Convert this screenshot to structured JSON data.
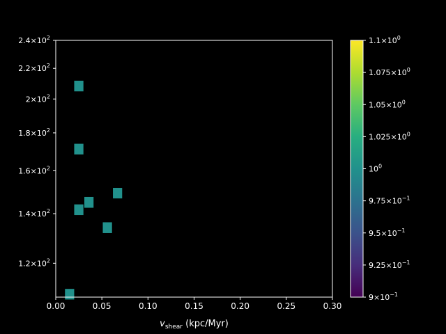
{
  "chart_data": {
    "type": "heatmap",
    "title": "",
    "xlabel": {
      "var": "v",
      "sub": "shear",
      "unit": " (kpc/Myr)"
    },
    "ylabel": "",
    "xlim": [
      0.0,
      0.3
    ],
    "ylim": [
      108,
      240
    ],
    "yscale": "log",
    "x_ticks": [
      0.0,
      0.05,
      0.1,
      0.15,
      0.2,
      0.25,
      0.3
    ],
    "x_tick_labels": [
      "0.00",
      "0.05",
      "0.10",
      "0.15",
      "0.20",
      "0.25",
      "0.30"
    ],
    "y_ticks": [
      {
        "value": 120,
        "mant": "1.2",
        "exp": "2"
      },
      {
        "value": 140,
        "mant": "1.4",
        "exp": "2"
      },
      {
        "value": 160,
        "mant": "1.6",
        "exp": "2"
      },
      {
        "value": 180,
        "mant": "1.8",
        "exp": "2"
      },
      {
        "value": 200,
        "mant": "2",
        "exp": "2"
      },
      {
        "value": 220,
        "mant": "2.2",
        "exp": "2"
      },
      {
        "value": 240,
        "mant": "2.4",
        "exp": "2"
      }
    ],
    "cells": [
      {
        "x0": 0.01,
        "x1": 0.02,
        "y0": 107.2,
        "y1": 110.8,
        "value": 1
      },
      {
        "x0": 0.02,
        "x1": 0.03,
        "y0": 204.8,
        "y1": 211.7,
        "value": 1
      },
      {
        "x0": 0.02,
        "x1": 0.03,
        "y0": 168.3,
        "y1": 174.0,
        "value": 1
      },
      {
        "x0": 0.062,
        "x1": 0.072,
        "y0": 146.8,
        "y1": 151.7,
        "value": 1
      },
      {
        "x0": 0.031,
        "x1": 0.041,
        "y0": 142.6,
        "y1": 147.5,
        "value": 1
      },
      {
        "x0": 0.02,
        "x1": 0.03,
        "y0": 139.4,
        "y1": 144.1,
        "value": 1
      },
      {
        "x0": 0.051,
        "x1": 0.061,
        "y0": 131.8,
        "y1": 136.3,
        "value": 1
      }
    ],
    "grid": false,
    "colorbar": {
      "colormap": "viridis",
      "range": [
        0.9,
        1.1
      ],
      "ticks": [
        {
          "value": 1.1,
          "mant": "1.1",
          "exp": "0"
        },
        {
          "value": 1.075,
          "mant": "1.075",
          "exp": "0"
        },
        {
          "value": 1.05,
          "mant": "1.05",
          "exp": "0"
        },
        {
          "value": 1.025,
          "mant": "1.025",
          "exp": "0"
        },
        {
          "value": 1.0,
          "mant": "",
          "exp": "0"
        },
        {
          "value": 0.975,
          "mant": "9.75",
          "exp": "−1"
        },
        {
          "value": 0.95,
          "mant": "9.5",
          "exp": "−1"
        },
        {
          "value": 0.925,
          "mant": "9.25",
          "exp": "−1"
        },
        {
          "value": 0.9,
          "mant": "9",
          "exp": "−1"
        }
      ]
    },
    "colors": {
      "background": "#000000",
      "axes": "#ffffff",
      "cell": "#21918c"
    }
  }
}
